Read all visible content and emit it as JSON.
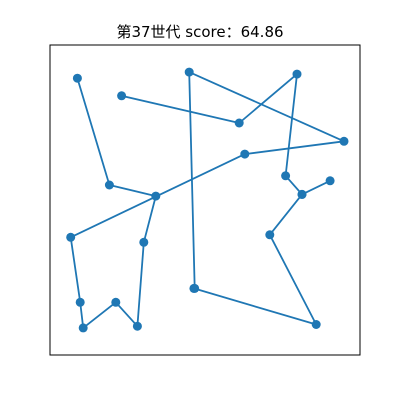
{
  "chart_data": {
    "type": "line",
    "title": "第37世代 score：64.86",
    "xlabel": "",
    "ylabel": "",
    "xlim": [
      0,
      100
    ],
    "ylim": [
      0,
      100
    ],
    "grid": false,
    "ticks_shown": false,
    "marker": "circle",
    "colors": {
      "series": "#1f77b4",
      "axes": "#000000",
      "background": "#ffffff"
    },
    "series": [
      {
        "points": [
          {
            "x": 4.1,
            "y": 93.8
          },
          {
            "x": 15.6,
            "y": 55.4
          },
          {
            "x": 32.3,
            "y": 51.4
          },
          {
            "x": 28.0,
            "y": 34.8
          },
          {
            "x": 25.7,
            "y": 4.6
          },
          {
            "x": 17.9,
            "y": 13.2
          },
          {
            "x": 6.2,
            "y": 4.0
          },
          {
            "x": 5.1,
            "y": 13.2
          },
          {
            "x": 1.7,
            "y": 36.6
          },
          {
            "x": 64.3,
            "y": 66.5
          },
          {
            "x": 100.0,
            "y": 71.1
          },
          {
            "x": 44.3,
            "y": 96.0
          },
          {
            "x": 46.3,
            "y": 18.2
          },
          {
            "x": 46.0,
            "y": 18.2
          },
          {
            "x": 90.0,
            "y": 5.2
          },
          {
            "x": 73.3,
            "y": 37.5
          },
          {
            "x": 84.9,
            "y": 52.0
          },
          {
            "x": 95.0,
            "y": 56.9
          },
          {
            "x": 84.9,
            "y": 52.0
          },
          {
            "x": 79.0,
            "y": 58.7
          },
          {
            "x": 83.1,
            "y": 95.3
          },
          {
            "x": 62.3,
            "y": 77.7
          },
          {
            "x": 20.0,
            "y": 87.5
          }
        ],
        "values": []
      }
    ]
  }
}
